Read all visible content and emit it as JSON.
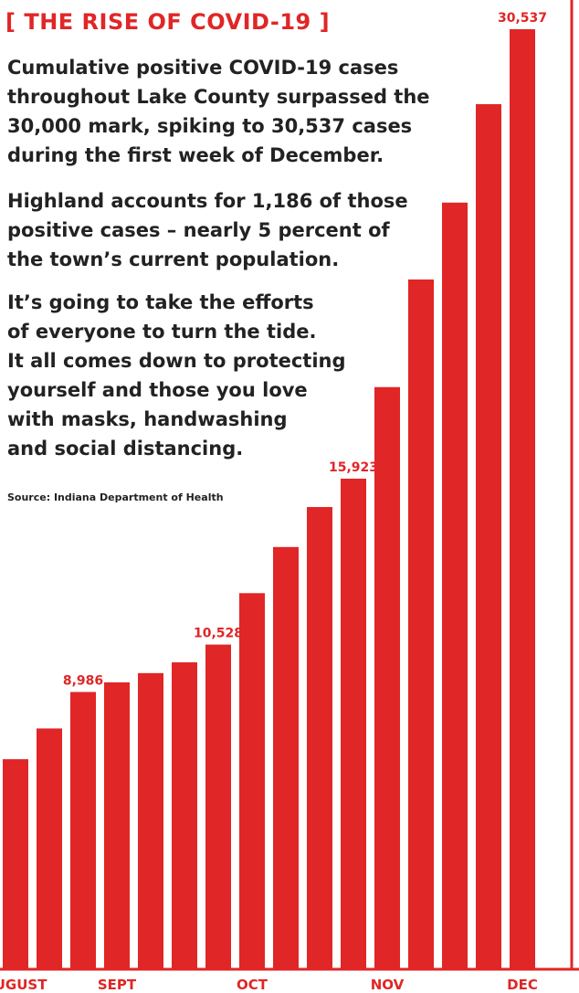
{
  "chart_data": {
    "type": "bar",
    "title": "[ THE RISE OF COVID-19 ]",
    "xlabel": "",
    "ylabel": "",
    "ylim": [
      0,
      30537
    ],
    "color": "#e02626",
    "text_color": "#222222",
    "values": [
      6800,
      7800,
      8986,
      9300,
      9600,
      9950,
      10528,
      12200,
      13700,
      15000,
      15923,
      18900,
      22400,
      24900,
      28100,
      30537
    ],
    "data_labels": [
      {
        "index": 2,
        "text": "8,986"
      },
      {
        "index": 6,
        "text": "10,528"
      },
      {
        "index": 10,
        "text": "15,923"
      },
      {
        "index": 15,
        "text": "30,537"
      }
    ],
    "month_labels": [
      {
        "index": 0,
        "text": "AUGUST"
      },
      {
        "index": 3,
        "text": "SEPT"
      },
      {
        "index": 7,
        "text": "OCT"
      },
      {
        "index": 11,
        "text": "NOV"
      },
      {
        "index": 15,
        "text": "DEC"
      }
    ],
    "grid": false
  },
  "text": {
    "title": "[ THE RISE OF COVID-19 ]",
    "para1": [
      "Cumulative positive COVID-19 cases",
      "throughout Lake County surpassed the",
      "30,000 mark, spiking to 30,537 cases",
      "during the first week of December."
    ],
    "para2": [
      "Highland accounts for 1,186 of those",
      "positive cases – nearly 5 percent of",
      "the town’s current population."
    ],
    "para3": [
      "It’s going to take the efforts",
      "of everyone to turn the tide.",
      "It all comes down to protecting",
      "yourself and those you love",
      "with masks, handwashing",
      "and social distancing."
    ],
    "source": "Source: Indiana Department of Health"
  }
}
